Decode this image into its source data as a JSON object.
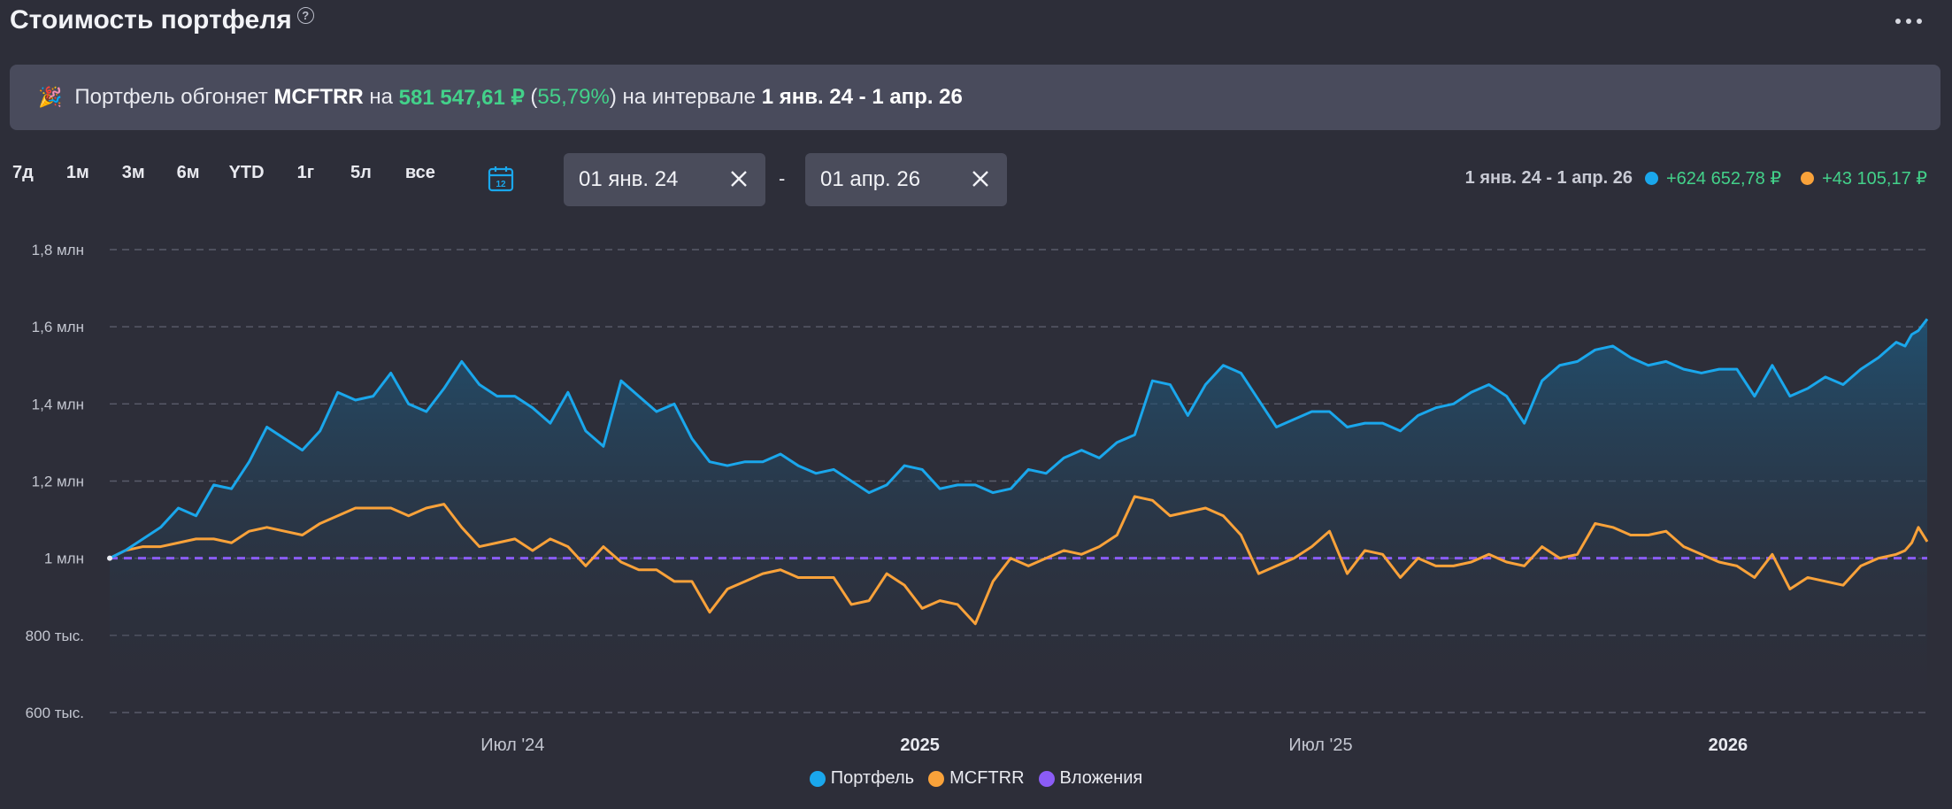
{
  "header": {
    "title": "Стоимость портфеля",
    "help_glyph": "?"
  },
  "banner": {
    "icon": "🎉",
    "text_prefix": "Портфель обгоняет ",
    "benchmark": "MCFTRR",
    "text_on": " на ",
    "amount": "581 547,61 ₽",
    "paren_open": " (",
    "percent": "55,79%",
    "paren_close": ")",
    "text_interval": " на интервале ",
    "interval": "1 янв. 24 - 1 апр. 26"
  },
  "ranges": [
    "7д",
    "1м",
    "3м",
    "6м",
    "YTD",
    "1г",
    "5л",
    "все"
  ],
  "date_from": "01 янв. 24",
  "date_to": "01 апр. 26",
  "date_separator": "-",
  "summary": {
    "range": "1 янв. 24 - 1 апр. 26",
    "portfolio_change": "+624 652,78 ₽",
    "benchmark_change": "+43 105,17 ₽"
  },
  "colors": {
    "portfolio": "#1aa7ec",
    "benchmark": "#f9a23a",
    "deposits": "#8b5cf6",
    "positive": "#43d18a"
  },
  "legend": [
    {
      "name": "Портфель",
      "color": "#1aa7ec"
    },
    {
      "name": "MCFTRR",
      "color": "#f9a23a"
    },
    {
      "name": "Вложения",
      "color": "#8b5cf6"
    }
  ],
  "chart_data": {
    "type": "area",
    "x_ticks": [
      "Июл '24",
      "2025",
      "Июл '25",
      "2026"
    ],
    "x_ticks_bold": [
      false,
      true,
      false,
      true
    ],
    "x_tick_dates": [
      "2024-07-01",
      "2025-01-01",
      "2025-07-01",
      "2026-01-01"
    ],
    "x_range": [
      "2024-01-01",
      "2026-04-01"
    ],
    "y_ticks": [
      {
        "value": 600000,
        "label": "600 тыс."
      },
      {
        "value": 800000,
        "label": "800 тыс."
      },
      {
        "value": 1000000,
        "label": "1 млн"
      },
      {
        "value": 1200000,
        "label": "1,2 млн"
      },
      {
        "value": 1400000,
        "label": "1,4 млн"
      },
      {
        "value": 1600000,
        "label": "1,6 млн"
      },
      {
        "value": 1800000,
        "label": "1,8 млн"
      }
    ],
    "ylim": [
      600000,
      1800000
    ],
    "grid": true,
    "legend_position": "bottom",
    "series": [
      {
        "name": "Портфель",
        "color": "#1aa7ec",
        "points": [
          [
            "2024-01-01",
            1000000
          ],
          [
            "2024-01-08",
            1020000
          ],
          [
            "2024-01-16",
            1050000
          ],
          [
            "2024-01-24",
            1080000
          ],
          [
            "2024-02-01",
            1130000
          ],
          [
            "2024-02-09",
            1110000
          ],
          [
            "2024-02-17",
            1190000
          ],
          [
            "2024-02-25",
            1180000
          ],
          [
            "2024-03-04",
            1250000
          ],
          [
            "2024-03-12",
            1340000
          ],
          [
            "2024-03-20",
            1310000
          ],
          [
            "2024-03-28",
            1280000
          ],
          [
            "2024-04-05",
            1330000
          ],
          [
            "2024-04-13",
            1430000
          ],
          [
            "2024-04-21",
            1410000
          ],
          [
            "2024-04-29",
            1420000
          ],
          [
            "2024-05-07",
            1480000
          ],
          [
            "2024-05-15",
            1400000
          ],
          [
            "2024-05-23",
            1380000
          ],
          [
            "2024-05-31",
            1440000
          ],
          [
            "2024-06-08",
            1510000
          ],
          [
            "2024-06-16",
            1450000
          ],
          [
            "2024-06-24",
            1420000
          ],
          [
            "2024-07-02",
            1420000
          ],
          [
            "2024-07-10",
            1390000
          ],
          [
            "2024-07-18",
            1350000
          ],
          [
            "2024-07-26",
            1430000
          ],
          [
            "2024-08-03",
            1330000
          ],
          [
            "2024-08-11",
            1290000
          ],
          [
            "2024-08-19",
            1460000
          ],
          [
            "2024-08-27",
            1420000
          ],
          [
            "2024-09-04",
            1380000
          ],
          [
            "2024-09-12",
            1400000
          ],
          [
            "2024-09-20",
            1310000
          ],
          [
            "2024-09-28",
            1250000
          ],
          [
            "2024-10-06",
            1240000
          ],
          [
            "2024-10-14",
            1250000
          ],
          [
            "2024-10-22",
            1250000
          ],
          [
            "2024-10-30",
            1270000
          ],
          [
            "2024-11-07",
            1240000
          ],
          [
            "2024-11-15",
            1220000
          ],
          [
            "2024-11-23",
            1230000
          ],
          [
            "2024-12-01",
            1200000
          ],
          [
            "2024-12-09",
            1170000
          ],
          [
            "2024-12-17",
            1190000
          ],
          [
            "2024-12-25",
            1240000
          ],
          [
            "2025-01-02",
            1230000
          ],
          [
            "2025-01-10",
            1180000
          ],
          [
            "2025-01-18",
            1190000
          ],
          [
            "2025-01-26",
            1190000
          ],
          [
            "2025-02-03",
            1170000
          ],
          [
            "2025-02-11",
            1180000
          ],
          [
            "2025-02-19",
            1230000
          ],
          [
            "2025-02-27",
            1220000
          ],
          [
            "2025-03-07",
            1260000
          ],
          [
            "2025-03-15",
            1280000
          ],
          [
            "2025-03-23",
            1260000
          ],
          [
            "2025-03-31",
            1300000
          ],
          [
            "2025-04-08",
            1320000
          ],
          [
            "2025-04-16",
            1460000
          ],
          [
            "2025-04-24",
            1450000
          ],
          [
            "2025-05-02",
            1370000
          ],
          [
            "2025-05-10",
            1450000
          ],
          [
            "2025-05-18",
            1500000
          ],
          [
            "2025-05-26",
            1480000
          ],
          [
            "2025-06-03",
            1410000
          ],
          [
            "2025-06-11",
            1340000
          ],
          [
            "2025-06-19",
            1360000
          ],
          [
            "2025-06-27",
            1380000
          ],
          [
            "2025-07-05",
            1380000
          ],
          [
            "2025-07-13",
            1340000
          ],
          [
            "2025-07-21",
            1350000
          ],
          [
            "2025-07-29",
            1350000
          ],
          [
            "2025-08-06",
            1330000
          ],
          [
            "2025-08-14",
            1370000
          ],
          [
            "2025-08-22",
            1390000
          ],
          [
            "2025-08-30",
            1400000
          ],
          [
            "2025-09-07",
            1430000
          ],
          [
            "2025-09-15",
            1450000
          ],
          [
            "2025-09-23",
            1420000
          ],
          [
            "2025-10-01",
            1350000
          ],
          [
            "2025-10-09",
            1460000
          ],
          [
            "2025-10-17",
            1500000
          ],
          [
            "2025-10-25",
            1510000
          ],
          [
            "2025-11-02",
            1540000
          ],
          [
            "2025-11-10",
            1550000
          ],
          [
            "2025-11-18",
            1520000
          ],
          [
            "2025-11-26",
            1500000
          ],
          [
            "2025-12-04",
            1510000
          ],
          [
            "2025-12-12",
            1490000
          ],
          [
            "2025-12-20",
            1480000
          ],
          [
            "2025-12-28",
            1490000
          ],
          [
            "2026-01-05",
            1490000
          ],
          [
            "2026-01-13",
            1420000
          ],
          [
            "2026-01-21",
            1500000
          ],
          [
            "2026-01-29",
            1420000
          ],
          [
            "2026-02-06",
            1440000
          ],
          [
            "2026-02-14",
            1470000
          ],
          [
            "2026-02-22",
            1450000
          ],
          [
            "2026-03-02",
            1490000
          ],
          [
            "2026-03-10",
            1520000
          ],
          [
            "2026-03-18",
            1560000
          ],
          [
            "2026-03-22",
            1550000
          ],
          [
            "2026-03-25",
            1580000
          ],
          [
            "2026-03-28",
            1590000
          ],
          [
            "2026-04-01",
            1620000
          ]
        ]
      },
      {
        "name": "MCFTRR",
        "color": "#f9a23a",
        "points": [
          [
            "2024-01-01",
            1000000
          ],
          [
            "2024-01-08",
            1020000
          ],
          [
            "2024-01-16",
            1030000
          ],
          [
            "2024-01-24",
            1030000
          ],
          [
            "2024-02-01",
            1040000
          ],
          [
            "2024-02-09",
            1050000
          ],
          [
            "2024-02-17",
            1050000
          ],
          [
            "2024-02-25",
            1040000
          ],
          [
            "2024-03-04",
            1070000
          ],
          [
            "2024-03-12",
            1080000
          ],
          [
            "2024-03-20",
            1070000
          ],
          [
            "2024-03-28",
            1060000
          ],
          [
            "2024-04-05",
            1090000
          ],
          [
            "2024-04-13",
            1110000
          ],
          [
            "2024-04-21",
            1130000
          ],
          [
            "2024-04-29",
            1130000
          ],
          [
            "2024-05-07",
            1130000
          ],
          [
            "2024-05-15",
            1110000
          ],
          [
            "2024-05-23",
            1130000
          ],
          [
            "2024-05-31",
            1140000
          ],
          [
            "2024-06-08",
            1080000
          ],
          [
            "2024-06-16",
            1030000
          ],
          [
            "2024-06-24",
            1040000
          ],
          [
            "2024-07-02",
            1050000
          ],
          [
            "2024-07-10",
            1020000
          ],
          [
            "2024-07-18",
            1050000
          ],
          [
            "2024-07-26",
            1030000
          ],
          [
            "2024-08-03",
            980000
          ],
          [
            "2024-08-11",
            1030000
          ],
          [
            "2024-08-19",
            990000
          ],
          [
            "2024-08-27",
            970000
          ],
          [
            "2024-09-04",
            970000
          ],
          [
            "2024-09-12",
            940000
          ],
          [
            "2024-09-20",
            940000
          ],
          [
            "2024-09-28",
            860000
          ],
          [
            "2024-10-06",
            920000
          ],
          [
            "2024-10-14",
            940000
          ],
          [
            "2024-10-22",
            960000
          ],
          [
            "2024-10-30",
            970000
          ],
          [
            "2024-11-07",
            950000
          ],
          [
            "2024-11-15",
            950000
          ],
          [
            "2024-11-23",
            950000
          ],
          [
            "2024-12-01",
            880000
          ],
          [
            "2024-12-09",
            890000
          ],
          [
            "2024-12-17",
            960000
          ],
          [
            "2024-12-25",
            930000
          ],
          [
            "2025-01-02",
            870000
          ],
          [
            "2025-01-10",
            890000
          ],
          [
            "2025-01-18",
            880000
          ],
          [
            "2025-01-26",
            830000
          ],
          [
            "2025-02-03",
            940000
          ],
          [
            "2025-02-11",
            1000000
          ],
          [
            "2025-02-19",
            980000
          ],
          [
            "2025-02-27",
            1000000
          ],
          [
            "2025-03-07",
            1020000
          ],
          [
            "2025-03-15",
            1010000
          ],
          [
            "2025-03-23",
            1030000
          ],
          [
            "2025-03-31",
            1060000
          ],
          [
            "2025-04-08",
            1160000
          ],
          [
            "2025-04-16",
            1150000
          ],
          [
            "2025-04-24",
            1110000
          ],
          [
            "2025-05-02",
            1120000
          ],
          [
            "2025-05-10",
            1130000
          ],
          [
            "2025-05-18",
            1110000
          ],
          [
            "2025-05-26",
            1060000
          ],
          [
            "2025-06-03",
            960000
          ],
          [
            "2025-06-11",
            980000
          ],
          [
            "2025-06-19",
            1000000
          ],
          [
            "2025-06-27",
            1030000
          ],
          [
            "2025-07-05",
            1070000
          ],
          [
            "2025-07-13",
            960000
          ],
          [
            "2025-07-21",
            1020000
          ],
          [
            "2025-07-29",
            1010000
          ],
          [
            "2025-08-06",
            950000
          ],
          [
            "2025-08-14",
            1000000
          ],
          [
            "2025-08-22",
            980000
          ],
          [
            "2025-08-30",
            980000
          ],
          [
            "2025-09-07",
            990000
          ],
          [
            "2025-09-15",
            1010000
          ],
          [
            "2025-09-23",
            990000
          ],
          [
            "2025-10-01",
            980000
          ],
          [
            "2025-10-09",
            1030000
          ],
          [
            "2025-10-17",
            1000000
          ],
          [
            "2025-10-25",
            1010000
          ],
          [
            "2025-11-02",
            1090000
          ],
          [
            "2025-11-10",
            1080000
          ],
          [
            "2025-11-18",
            1060000
          ],
          [
            "2025-11-26",
            1060000
          ],
          [
            "2025-12-04",
            1070000
          ],
          [
            "2025-12-12",
            1030000
          ],
          [
            "2025-12-20",
            1010000
          ],
          [
            "2025-12-28",
            990000
          ],
          [
            "2026-01-05",
            980000
          ],
          [
            "2026-01-13",
            950000
          ],
          [
            "2026-01-21",
            1010000
          ],
          [
            "2026-01-29",
            920000
          ],
          [
            "2026-02-06",
            950000
          ],
          [
            "2026-02-14",
            940000
          ],
          [
            "2026-02-22",
            930000
          ],
          [
            "2026-03-02",
            980000
          ],
          [
            "2026-03-10",
            1000000
          ],
          [
            "2026-03-18",
            1010000
          ],
          [
            "2026-03-22",
            1020000
          ],
          [
            "2026-03-25",
            1040000
          ],
          [
            "2026-03-28",
            1080000
          ],
          [
            "2026-04-01",
            1043000
          ]
        ]
      },
      {
        "name": "Вложения",
        "color": "#8b5cf6",
        "points": [
          [
            "2024-01-01",
            1000000
          ],
          [
            "2026-04-01",
            1000000
          ]
        ]
      }
    ]
  }
}
